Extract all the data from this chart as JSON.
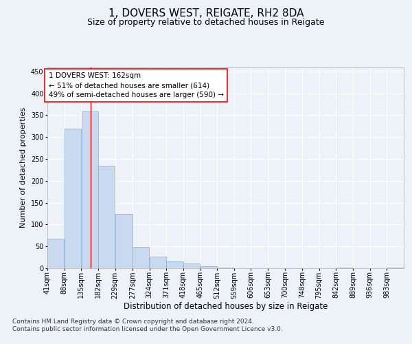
{
  "title": "1, DOVERS WEST, REIGATE, RH2 8DA",
  "subtitle": "Size of property relative to detached houses in Reigate",
  "xlabel": "Distribution of detached houses by size in Reigate",
  "ylabel": "Number of detached properties",
  "footnote1": "Contains HM Land Registry data © Crown copyright and database right 2024.",
  "footnote2": "Contains public sector information licensed under the Open Government Licence v3.0.",
  "annotation_line1": "1 DOVERS WEST: 162sqm",
  "annotation_line2": "← 51% of detached houses are smaller (614)",
  "annotation_line3": "49% of semi-detached houses are larger (590) →",
  "bar_color": "#c9d9f0",
  "bar_edge_color": "#7bafd4",
  "redline_x": 162,
  "categories": [
    "41sqm",
    "88sqm",
    "135sqm",
    "182sqm",
    "229sqm",
    "277sqm",
    "324sqm",
    "371sqm",
    "418sqm",
    "465sqm",
    "512sqm",
    "559sqm",
    "606sqm",
    "653sqm",
    "700sqm",
    "748sqm",
    "795sqm",
    "842sqm",
    "889sqm",
    "936sqm",
    "983sqm"
  ],
  "bin_edges": [
    41,
    88,
    135,
    182,
    229,
    277,
    324,
    371,
    418,
    465,
    512,
    559,
    606,
    653,
    700,
    748,
    795,
    842,
    889,
    936,
    983,
    1030
  ],
  "values": [
    68,
    320,
    358,
    235,
    125,
    48,
    26,
    16,
    11,
    4,
    1,
    0,
    0,
    0,
    0,
    0,
    0,
    1,
    0,
    0,
    1
  ],
  "ylim": [
    0,
    460
  ],
  "yticks": [
    0,
    50,
    100,
    150,
    200,
    250,
    300,
    350,
    400,
    450
  ],
  "bg_color": "#edf1f8",
  "plot_bg_color": "#edf1f8",
  "grid_color": "#ffffff",
  "title_fontsize": 11,
  "subtitle_fontsize": 9,
  "annot_fontsize": 7.5,
  "tick_fontsize": 7,
  "ylabel_fontsize": 8,
  "xlabel_fontsize": 8.5,
  "footnote_fontsize": 6.5
}
